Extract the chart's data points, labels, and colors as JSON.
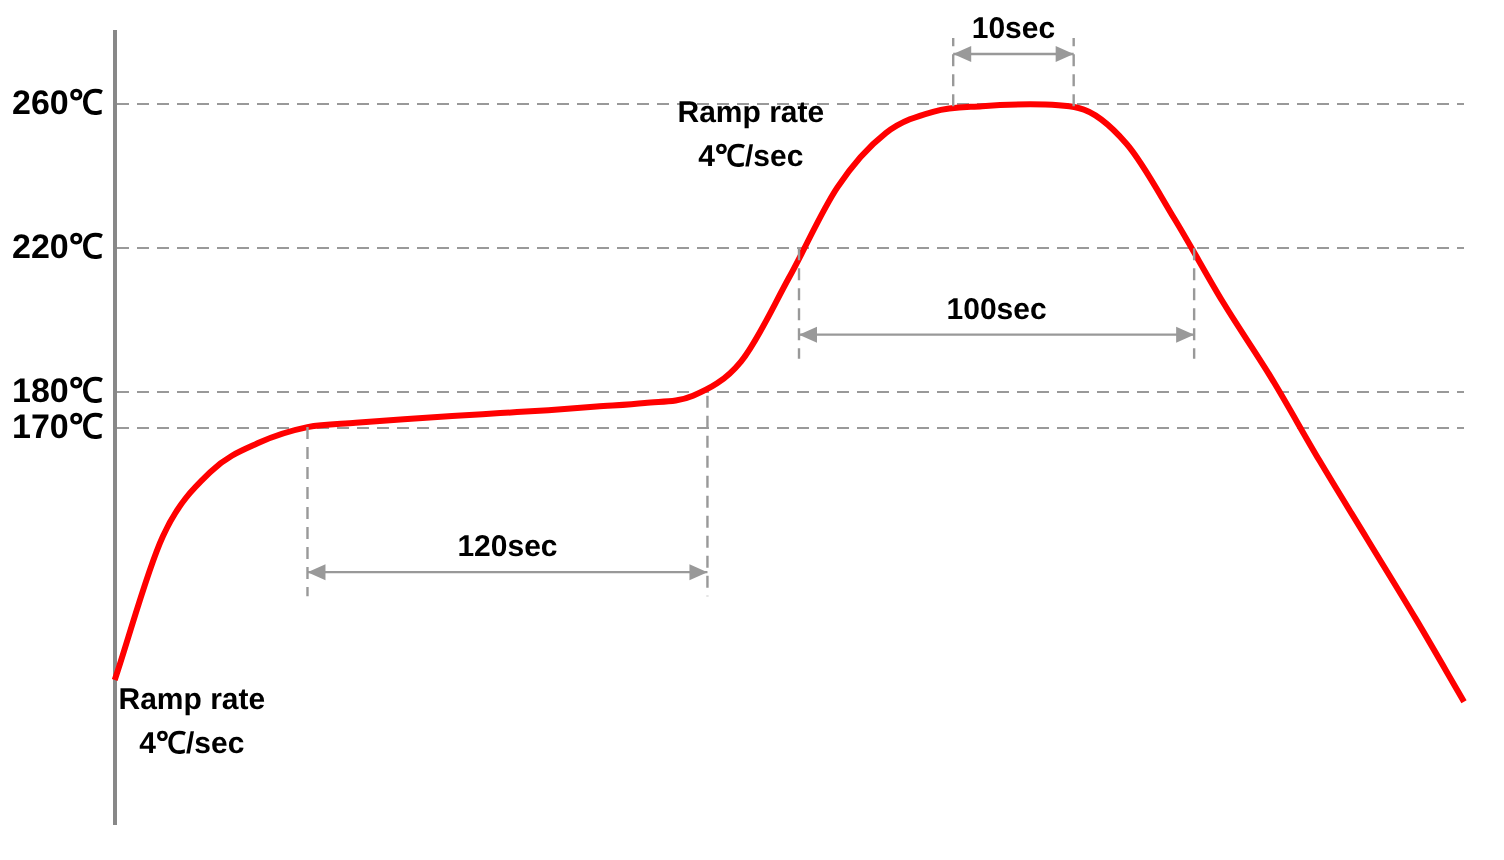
{
  "chart_data": {
    "type": "line",
    "categories": [
      null,
      null,
      null,
      null,
      null,
      null,
      null,
      null,
      null,
      null,
      null,
      null,
      null,
      null,
      null,
      null,
      null,
      null,
      null,
      null,
      null,
      null,
      null,
      null,
      null,
      null,
      null,
      null,
      null
    ],
    "series": [
      {
        "color": "#ff0000",
        "values": [
          100,
          140,
          158,
          166,
          170.3,
          171.5,
          172.5,
          173.4,
          174.2,
          175,
          176,
          177,
          179,
          188.6,
          212,
          237,
          252,
          258,
          259.5,
          260,
          259,
          249,
          228,
          205,
          184,
          161,
          139,
          117,
          94
        ]
      }
    ],
    "ylim": [
      60,
      280
    ],
    "yticks": [
      {
        "value": 170,
        "label": "170℃"
      },
      {
        "value": 180,
        "label": "180℃"
      },
      {
        "value": 220,
        "label": "220℃"
      },
      {
        "value": 260,
        "label": "260℃"
      }
    ],
    "tick_labels": "y",
    "grid": "y",
    "legend": false,
    "marker": "none",
    "line_style": "solid",
    "annotations": [
      "Ramp rate\n4℃/sec",
      "120sec",
      "Ramp rate\n4℃/sec",
      "100sec",
      "10sec"
    ]
  }
}
